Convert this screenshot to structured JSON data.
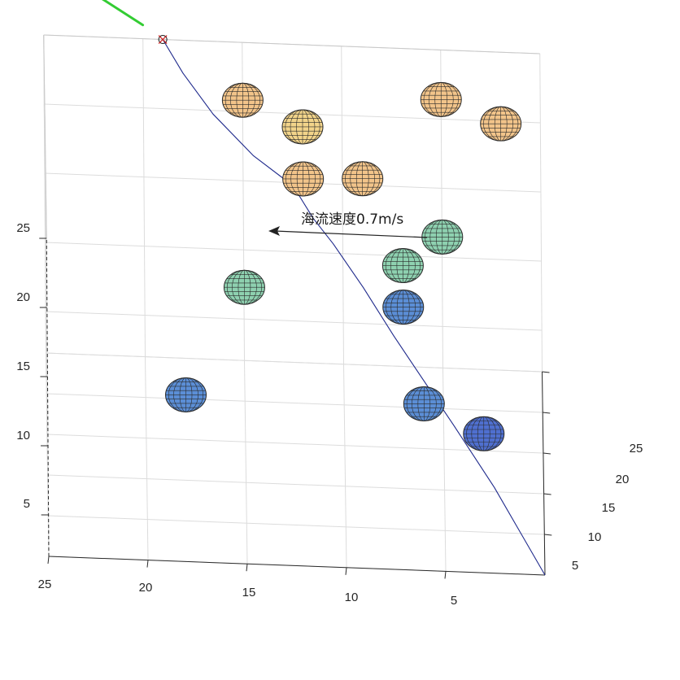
{
  "chart_data": {
    "type": "scatter",
    "subtype": "3d-trajectory-with-sphere-obstacles",
    "title": "",
    "xlabel": "",
    "ylabel": "",
    "zlabel": "",
    "grid": true,
    "x_ticks": [
      5,
      10,
      15,
      20,
      25
    ],
    "y_ticks": [
      5,
      10,
      15,
      20,
      25
    ],
    "z_ticks": [
      5,
      10,
      15,
      20,
      25
    ],
    "xlim": [
      0,
      25
    ],
    "ylim": [
      0,
      25
    ],
    "zlim": [
      2,
      25
    ],
    "annotation": {
      "text": "海流速度0.7m/s",
      "arrow_direction": "left"
    },
    "start_marker": "circle-x",
    "start_marker_color": "#cc2222",
    "current_vector_color": "#33cc33",
    "path_color": "#1f2a8c",
    "obstacles": [
      {
        "x": 15,
        "y": 23,
        "z": 22,
        "color": "#f2c48a"
      },
      {
        "x": 12,
        "y": 20,
        "z": 22,
        "color": "#f2d48a"
      },
      {
        "x": 5,
        "y": 24,
        "z": 22,
        "color": "#f2c48a"
      },
      {
        "x": 2,
        "y": 23,
        "z": 21,
        "color": "#f2c48a"
      },
      {
        "x": 12,
        "y": 17,
        "z": 20,
        "color": "#f2c48a"
      },
      {
        "x": 9,
        "y": 19,
        "z": 19,
        "color": "#f2c48a"
      },
      {
        "x": 5,
        "y": 19,
        "z": 15,
        "color": "#8ed1b0"
      },
      {
        "x": 7,
        "y": 17,
        "z": 14,
        "color": "#8ed1b0"
      },
      {
        "x": 15,
        "y": 17,
        "z": 12,
        "color": "#8ed1b0"
      },
      {
        "x": 7,
        "y": 17,
        "z": 11,
        "color": "#5b8ed6"
      },
      {
        "x": 18,
        "y": 12,
        "z": 7,
        "color": "#5b8ed6"
      },
      {
        "x": 6,
        "y": 12,
        "z": 7,
        "color": "#5b8ed6"
      },
      {
        "x": 3,
        "y": 12,
        "z": 5,
        "color": "#4f6fcf"
      }
    ],
    "path": [
      [
        19,
        25,
        25
      ],
      [
        18,
        23.5,
        23.5
      ],
      [
        16.5,
        22,
        21.5
      ],
      [
        14.5,
        20.5,
        19.5
      ],
      [
        12.5,
        19.5,
        18
      ],
      [
        11.5,
        19,
        16
      ],
      [
        10.5,
        18.5,
        14.5
      ],
      [
        9,
        17.5,
        12
      ],
      [
        7.5,
        16,
        9.5
      ],
      [
        6,
        14,
        7.5
      ],
      [
        4.5,
        12,
        5.5
      ],
      [
        2.5,
        8,
        3.5
      ],
      [
        0,
        0,
        2
      ]
    ],
    "current_vector": [
      [
        22.5,
        27,
        27
      ],
      [
        20,
        25.5,
        25.7
      ]
    ]
  }
}
